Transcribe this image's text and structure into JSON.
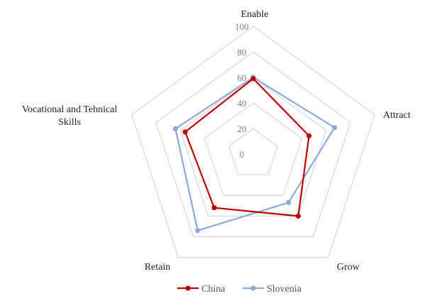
{
  "chart_data": {
    "type": "radar",
    "categories": [
      "Enable",
      "Attract",
      "Grow",
      "Retain",
      "Vocational and Tehnical Skills"
    ],
    "category_lines": [
      [
        "Enable"
      ],
      [
        "Attract"
      ],
      [
        "Grow"
      ],
      [
        "Retain"
      ],
      [
        "Vocational and Tehnical",
        "Skills"
      ]
    ],
    "r_ticks": [
      "0",
      "20",
      "40",
      "60",
      "80",
      "100"
    ],
    "r_range": [
      0,
      100
    ],
    "grid": true,
    "legend_position": "bottom",
    "series": [
      {
        "name": "China",
        "values": [
          59,
          46,
          60,
          52,
          56
        ],
        "color": "#c00000"
      },
      {
        "name": "Slovenia",
        "values": [
          60,
          67,
          47,
          74,
          64
        ],
        "color": "#8eaadb"
      }
    ],
    "grid_color": "#d9d9d9"
  }
}
